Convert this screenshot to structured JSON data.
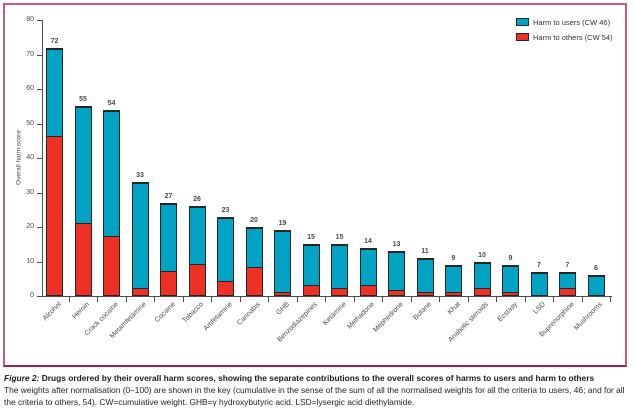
{
  "figure": {
    "caption_prefix": "Figure 2:",
    "caption_title": " Drugs ordered by their overall harm scores, showing the separate contributions to the overall scores of harms to users and harm to others",
    "caption_body": "The weights after normalisation (0–100) are shown in the key (cumulative in the sense of the sum of all the normalised weights for all the criteria to users, 46; and for all the criteria to others, 54). CW=cumulative weight. GHB=γ hydroxybutyric acid. LSD=lysergic acid diethylamide."
  },
  "colors": {
    "users_blue": "#00a3c4",
    "others_red": "#ee3124",
    "bar_outline": "#262626",
    "panel_border_pink": "#d0597e",
    "panel_border_bottom": "#9e2150",
    "axis_gray": "#4d4d4d",
    "text_gray": "#4a4a4a"
  },
  "chart_data": {
    "type": "bar",
    "stacked": true,
    "title": "",
    "xlabel": "",
    "ylabel": "Overall harm score",
    "ylim": [
      0,
      80
    ],
    "y_ticks": [
      0,
      10,
      20,
      30,
      40,
      50,
      60,
      70,
      80
    ],
    "grid": false,
    "legend_position": "top-right",
    "categories": [
      "Alcohol",
      "Heroin",
      "Crack cocaine",
      "Metamfetamine",
      "Cocaine",
      "Tobacco",
      "Amfetamine",
      "Cannabis",
      "GHB",
      "Benzodiazepines",
      "Ketamine",
      "Methadone",
      "Mephedrone",
      "Butane",
      "Khat",
      "Anabolic steroids",
      "Ecstasy",
      "LSD",
      "Buprenorphine",
      "Mushrooms"
    ],
    "totals": [
      72,
      55,
      54,
      33,
      27,
      26,
      23,
      20,
      19,
      15,
      15,
      14,
      13,
      11,
      9,
      10,
      9,
      7,
      7,
      6
    ],
    "series": [
      {
        "name": "Harm to users (CW 46)",
        "color": "#00a3c4",
        "values": [
          26,
          34,
          37,
          31,
          20,
          17,
          19,
          12,
          18,
          12,
          13,
          11,
          11.5,
          10,
          8,
          8,
          8,
          7,
          5,
          6
        ]
      },
      {
        "name": "Harm to others (CW 54)",
        "color": "#ee3124",
        "values": [
          46,
          21,
          17,
          2,
          7,
          9,
          4,
          8,
          1,
          3,
          2,
          3,
          1.5,
          1,
          1,
          2,
          1,
          0,
          2,
          0
        ]
      }
    ],
    "legend": [
      {
        "label": "Harm to users (CW 46)",
        "color": "#00a3c4"
      },
      {
        "label": "Harm to others (CW 54)",
        "color": "#ee3124"
      }
    ]
  }
}
